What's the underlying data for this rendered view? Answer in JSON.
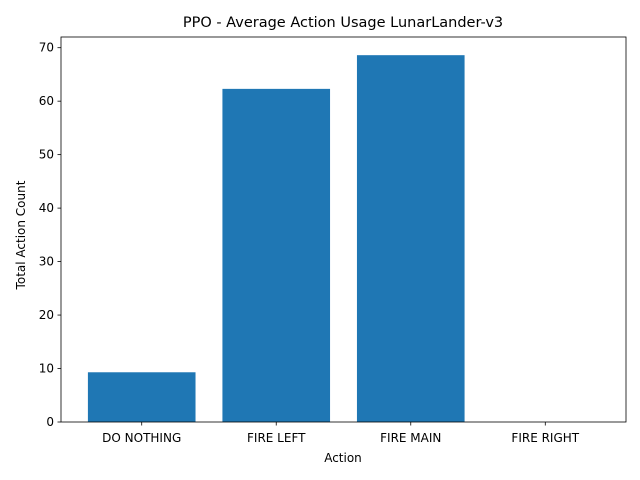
{
  "chart_data": {
    "type": "bar",
    "title": "PPO - Average Action Usage LunarLander-v3",
    "xlabel": "Action",
    "ylabel": "Total Action Count",
    "categories": [
      "DO NOTHING",
      "FIRE LEFT",
      "FIRE MAIN",
      "FIRE RIGHT"
    ],
    "values": [
      9.3,
      62.3,
      68.6,
      0
    ],
    "ylim": [
      0,
      72
    ],
    "yticks": [
      0,
      10,
      20,
      30,
      40,
      50,
      60,
      70
    ],
    "bar_color": "#1f77b4",
    "grid": false,
    "legend": "none"
  }
}
